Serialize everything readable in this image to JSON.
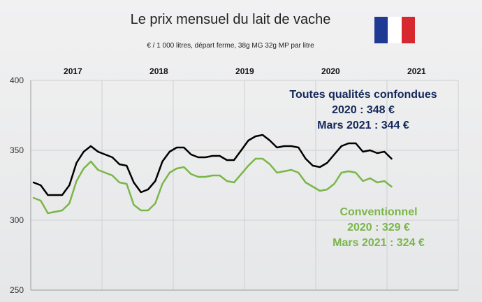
{
  "chart_data": {
    "type": "line",
    "title": "Le prix mensuel du lait de vache",
    "subtitle": "€ / 1 000 litres, départ ferme, 38g MG 32g MP par litre",
    "ylim": [
      250,
      400
    ],
    "yticks": [
      250,
      300,
      350,
      400
    ],
    "grid": true,
    "year_labels": [
      "2017",
      "2018",
      "2019",
      "2020",
      "2021"
    ],
    "x_start": "2017-01",
    "series": [
      {
        "color": "#000000",
        "values": [
          327,
          325,
          318,
          318,
          318,
          325,
          341,
          349,
          353,
          349,
          347,
          345,
          340,
          339,
          327,
          320,
          322,
          328,
          342,
          349,
          352,
          352,
          347,
          345,
          345,
          346,
          346,
          343,
          343,
          350,
          357,
          360,
          361,
          357,
          352,
          353,
          353,
          352,
          344,
          339,
          338,
          341,
          347,
          353,
          355,
          355,
          349,
          350,
          348,
          349,
          344
        ]
      },
      {
        "color": "#7ab648",
        "values": [
          316,
          314,
          305,
          306,
          307,
          312,
          328,
          337,
          342,
          336,
          334,
          332,
          327,
          326,
          311,
          307,
          307,
          312,
          326,
          334,
          337,
          338,
          333,
          331,
          331,
          332,
          332,
          328,
          327,
          333,
          339,
          344,
          344,
          340,
          334,
          335,
          336,
          334,
          327,
          324,
          321,
          322,
          326,
          334,
          335,
          334,
          328,
          330,
          327,
          328,
          324
        ]
      }
    ],
    "annotations": {
      "all_qualities": {
        "lines": [
          "Toutes qualités confondues",
          "2020 : 348 €",
          "Mars 2021 :  344 €"
        ],
        "color": "#14285a"
      },
      "conventional": {
        "lines": [
          "Conventionnel",
          "2020 : 329 €",
          "Mars 2021 : 324 €"
        ],
        "color": "#7ab648"
      }
    }
  },
  "flag": {
    "colors": [
      "#1f3a93",
      "#ffffff",
      "#d7282f"
    ]
  }
}
